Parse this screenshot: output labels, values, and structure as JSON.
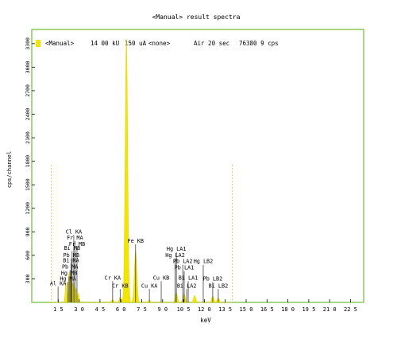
{
  "title": "<Manual> result spectra",
  "info": {
    "mode": "<Manual>",
    "voltage": "14 00 kU",
    "current": "150 uA",
    "filter": "<none>",
    "atmosphere_time": "Air 20 sec",
    "rate": "76380 9 cps"
  },
  "colors": {
    "frame": "#7ac142",
    "spectrum": "#f2e600",
    "marker": "#404040",
    "limit": "#d8c24a"
  },
  "chart_data": {
    "type": "area",
    "xlabel": "keV",
    "ylabel": "cps/channel",
    "xlim": [
      0,
      23.5
    ],
    "ylim": [
      0,
      3400
    ],
    "x_ticks": [
      1.5,
      3.0,
      4.5,
      6.0,
      7.5,
      9.0,
      10.5,
      12.0,
      13.5,
      15.0,
      16.5,
      18.0,
      19.5,
      21.0,
      22.5
    ],
    "x_tick_labels": [
      "1 5",
      "3 0",
      "4 5",
      "6 0",
      "7 5",
      "9 0",
      "10 5",
      "12 0",
      "13 5",
      "15 0",
      "16 5",
      "18 0",
      "19 5",
      "21 0",
      "22 5"
    ],
    "y_ticks": [
      300,
      600,
      900,
      1200,
      1500,
      1800,
      2100,
      2400,
      2700,
      3000,
      3300
    ],
    "y_tick_labels": [
      "300",
      "600",
      "900",
      "1200",
      "1500",
      "1800",
      "2100",
      "2400",
      "2700",
      "3000",
      "3300"
    ],
    "limits_keV": [
      1.0,
      14.0
    ],
    "peaks": [
      {
        "center": 2.05,
        "height": 260,
        "width": 0.05
      },
      {
        "center": 2.25,
        "height": 300,
        "width": 0.05
      },
      {
        "center": 2.35,
        "height": 320,
        "width": 0.05
      },
      {
        "center": 2.5,
        "height": 240,
        "width": 0.05
      },
      {
        "center": 2.62,
        "height": 230,
        "width": 0.05
      },
      {
        "center": 2.78,
        "height": 180,
        "width": 0.05
      },
      {
        "center": 2.95,
        "height": 120,
        "width": 0.05
      },
      {
        "center": 5.41,
        "height": 40,
        "width": 0.07
      },
      {
        "center": 5.95,
        "height": 70,
        "width": 0.07
      },
      {
        "center": 6.4,
        "height": 3360,
        "width": 0.09
      },
      {
        "center": 7.06,
        "height": 650,
        "width": 0.09
      },
      {
        "center": 8.05,
        "height": 30,
        "width": 0.08
      },
      {
        "center": 9.99,
        "height": 120,
        "width": 0.08
      },
      {
        "center": 10.55,
        "height": 110,
        "width": 0.08
      },
      {
        "center": 11.3,
        "height": 90,
        "width": 0.08
      },
      {
        "center": 12.6,
        "height": 80,
        "width": 0.08
      },
      {
        "center": 13.0,
        "height": 60,
        "width": 0.08
      }
    ],
    "element_lines": [
      {
        "label": "Al KA",
        "x": 1.49,
        "h": 200
      },
      {
        "label": "Cl KA",
        "x": 2.62,
        "h": 860
      },
      {
        "label": "Fr MA",
        "x": 2.7,
        "h": 780
      },
      {
        "label": "Fr MB",
        "x": 2.85,
        "h": 700
      },
      {
        "label": "Bi MB",
        "x": 2.5,
        "h": 650
      },
      {
        "label": "Pb MB",
        "x": 2.44,
        "h": 560
      },
      {
        "label": "Bi MA",
        "x": 2.42,
        "h": 490
      },
      {
        "label": "Pb MA",
        "x": 2.35,
        "h": 410
      },
      {
        "label": "Hg MB",
        "x": 2.28,
        "h": 330
      },
      {
        "label": "Hg MA",
        "x": 2.2,
        "h": 260
      },
      {
        "label": "Cr KA",
        "x": 5.41,
        "h": 270
      },
      {
        "label": "Cr KB",
        "x": 5.95,
        "h": 170
      },
      {
        "label": "Fe KB",
        "x": 7.06,
        "h": 740
      },
      {
        "label": "Cu KA",
        "x": 8.05,
        "h": 170
      },
      {
        "label": "Cu KB",
        "x": 8.9,
        "h": 270
      },
      {
        "label": "Hg LA1",
        "x": 9.99,
        "h": 640
      },
      {
        "label": "Hg LA2",
        "x": 9.9,
        "h": 560
      },
      {
        "label": "Pb LA1",
        "x": 10.55,
        "h": 400
      },
      {
        "label": "Pb LA2",
        "x": 10.45,
        "h": 480
      },
      {
        "label": "Bi LA1",
        "x": 10.84,
        "h": 270
      },
      {
        "label": "Bi LA2",
        "x": 10.73,
        "h": 170
      },
      {
        "label": "Hg LB2",
        "x": 11.92,
        "h": 480
      },
      {
        "label": "Pb LB2",
        "x": 12.6,
        "h": 260
      },
      {
        "label": "Bi LB2",
        "x": 13.0,
        "h": 170
      }
    ]
  }
}
